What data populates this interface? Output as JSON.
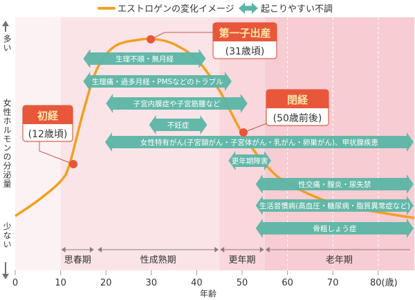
{
  "chart_data": {
    "type": "line",
    "xlabel": "年齢",
    "ylabel": "女性ホルモンの分泌量",
    "y_high_label": "多い",
    "y_low_label": "少ない",
    "xlim": [
      0,
      88
    ],
    "x_ticks": [
      "0",
      "10",
      "20",
      "30",
      "40",
      "50",
      "60",
      "70",
      "80(歳)"
    ],
    "x_tick_values": [
      0,
      10,
      20,
      30,
      40,
      50,
      60,
      70,
      80
    ],
    "legend": {
      "curve": "エストロゲンの変化イメージ",
      "arrow": "起こりやすい不調",
      "placement": "top"
    },
    "colors": {
      "curve": "#f0a020",
      "arrow": "#5bb5a5",
      "marker": "#e8543a",
      "callout": "#e8573a"
    },
    "series": [
      {
        "name": "エストロゲンの変化イメージ",
        "x": [
          0,
          5,
          10,
          12,
          15,
          18,
          22,
          28,
          31,
          35,
          40,
          45,
          50,
          55,
          60,
          70,
          80,
          88
        ],
        "y": [
          6,
          14,
          24,
          33,
          60,
          82,
          94,
          97.5,
          97.5,
          95,
          87,
          71,
          49,
          33,
          23,
          12.5,
          8,
          5
        ]
      }
    ],
    "life_stages": [
      {
        "label": "思春期",
        "from": 10,
        "to": 17.5
      },
      {
        "label": "性成熟期",
        "from": 18,
        "to": 45
      },
      {
        "label": "更年期",
        "from": 45,
        "to": 55
      },
      {
        "label": "老年期",
        "from": 55,
        "to": 88
      }
    ],
    "bands": [
      {
        "from": 0,
        "to": 10,
        "color": "#fdf2f3"
      },
      {
        "from": 10,
        "to": 45,
        "color": "#fbe4e7"
      },
      {
        "from": 45,
        "to": 55,
        "color": "#f9d7dc"
      },
      {
        "from": 55,
        "to": 88,
        "color": "#f7ccd2"
      }
    ],
    "conditions": [
      {
        "label": "生理不順・無月経",
        "from": 15,
        "to": 42
      },
      {
        "label": "生理痛・過多月経・PMSなどのトラブル",
        "from": 15,
        "to": 47.7
      },
      {
        "label": "子宮内膜症や子宮筋腫など",
        "from": 20,
        "to": 51.2
      },
      {
        "label": "不妊症",
        "from": 29.5,
        "to": 42.3
      },
      {
        "label": "女性特有がん(子宮頸がん・子宮体がん・乳がん・卵巣がん)、甲状腺疾患",
        "from": 19.8,
        "to": 88
      },
      {
        "label": "更年期障害",
        "from": 47,
        "to": 56.4
      },
      {
        "label": "性交痛・膣炎・尿失禁",
        "from": 53,
        "to": 88
      },
      {
        "label": "生活習慣病(高血圧・糖尿病・脂質異常症など)",
        "from": 53,
        "to": 88
      },
      {
        "label": "骨粗しょう症",
        "from": 53,
        "to": 88
      }
    ],
    "annotations": [
      {
        "title": "初経",
        "sub": "(12歳頃)",
        "age": 12
      },
      {
        "title": "第一子出産",
        "sub": "(31歳頃)",
        "age": 30
      },
      {
        "title": "閉経",
        "sub": "(50歳前後)",
        "age": 50
      }
    ]
  }
}
